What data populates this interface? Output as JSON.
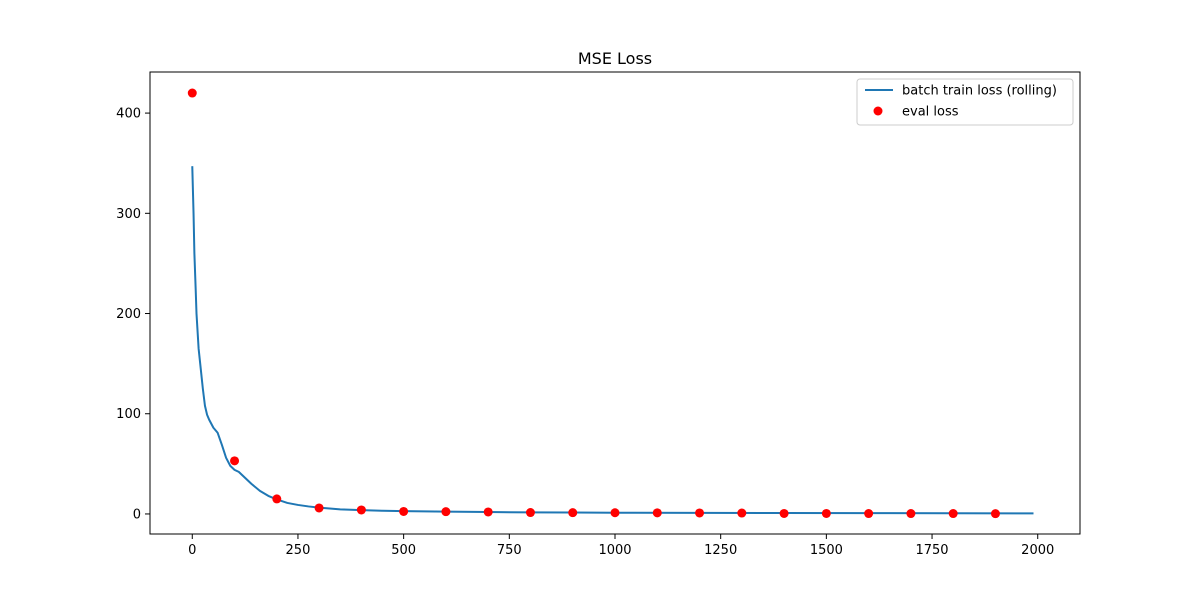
{
  "chart_data": {
    "type": "line",
    "title": "MSE Loss",
    "xlabel": "",
    "ylabel": "",
    "xlim": [
      -100,
      2100
    ],
    "ylim": [
      -20,
      441
    ],
    "xticks": [
      0,
      250,
      500,
      750,
      1000,
      1250,
      1500,
      1750,
      2000
    ],
    "xtick_labels": [
      "0",
      "250",
      "500",
      "750",
      "1000",
      "1250",
      "1500",
      "1750",
      "2000"
    ],
    "yticks": [
      0,
      100,
      200,
      300,
      400
    ],
    "ytick_labels": [
      "0",
      "100",
      "200",
      "300",
      "400"
    ],
    "grid": false,
    "legend_position": "top-right",
    "series": [
      {
        "name": "batch train loss (rolling)",
        "kind": "line",
        "color": "#1f77b4",
        "x": [
          0,
          3,
          5,
          8,
          10,
          15,
          20,
          25,
          30,
          35,
          40,
          50,
          60,
          70,
          80,
          90,
          100,
          110,
          120,
          140,
          160,
          180,
          200,
          225,
          250,
          275,
          300,
          350,
          400,
          450,
          500,
          600,
          700,
          800,
          900,
          1000,
          1200,
          1400,
          1600,
          1800,
          1990
        ],
        "y": [
          347,
          300,
          260,
          225,
          200,
          165,
          145,
          125,
          108,
          99,
          94,
          86,
          81,
          69,
          56,
          48,
          44,
          42,
          38,
          30,
          23,
          18,
          14.5,
          11,
          9,
          7.5,
          6.3,
          4.6,
          3.8,
          3.2,
          2.8,
          2.3,
          1.9,
          1.6,
          1.4,
          1.25,
          1.05,
          0.9,
          0.8,
          0.7,
          0.6
        ]
      },
      {
        "name": "eval loss",
        "kind": "scatter",
        "color": "#ff0000",
        "x": [
          0,
          100,
          200,
          300,
          400,
          500,
          600,
          700,
          800,
          900,
          1000,
          1100,
          1200,
          1300,
          1400,
          1500,
          1600,
          1700,
          1800,
          1900
        ],
        "y": [
          420,
          53,
          15,
          6,
          4,
          2.5,
          2.3,
          2,
          1.4,
          1.3,
          1.2,
          1.1,
          1,
          0.9,
          0.5,
          0.5,
          0.4,
          0.4,
          0.4,
          0.3
        ]
      }
    ]
  }
}
